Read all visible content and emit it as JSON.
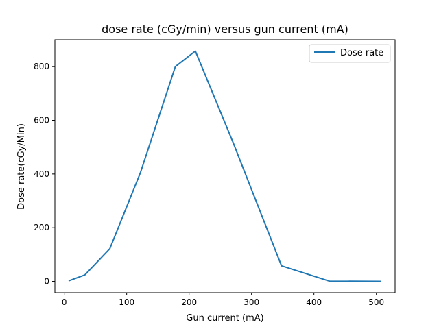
{
  "chart_data": {
    "type": "line",
    "title": "dose rate (cGy/min) versus gun current (mA)",
    "xlabel": "Gun current (mA)",
    "ylabel": "Dose rate(cGy/Min)",
    "xlim": [
      -15,
      530
    ],
    "ylim": [
      -42,
      900
    ],
    "xticks": [
      0,
      100,
      200,
      300,
      400,
      500
    ],
    "yticks": [
      0,
      200,
      400,
      600,
      800
    ],
    "grid": false,
    "legend_position": "top-right",
    "series": [
      {
        "name": "Dose rate",
        "color": "#1f77b4",
        "x": [
          7,
          33,
          73,
          122,
          178,
          210,
          270,
          348,
          425,
          507
        ],
        "y": [
          2,
          24,
          122,
          405,
          800,
          858,
          520,
          58,
          1,
          0
        ]
      }
    ]
  }
}
